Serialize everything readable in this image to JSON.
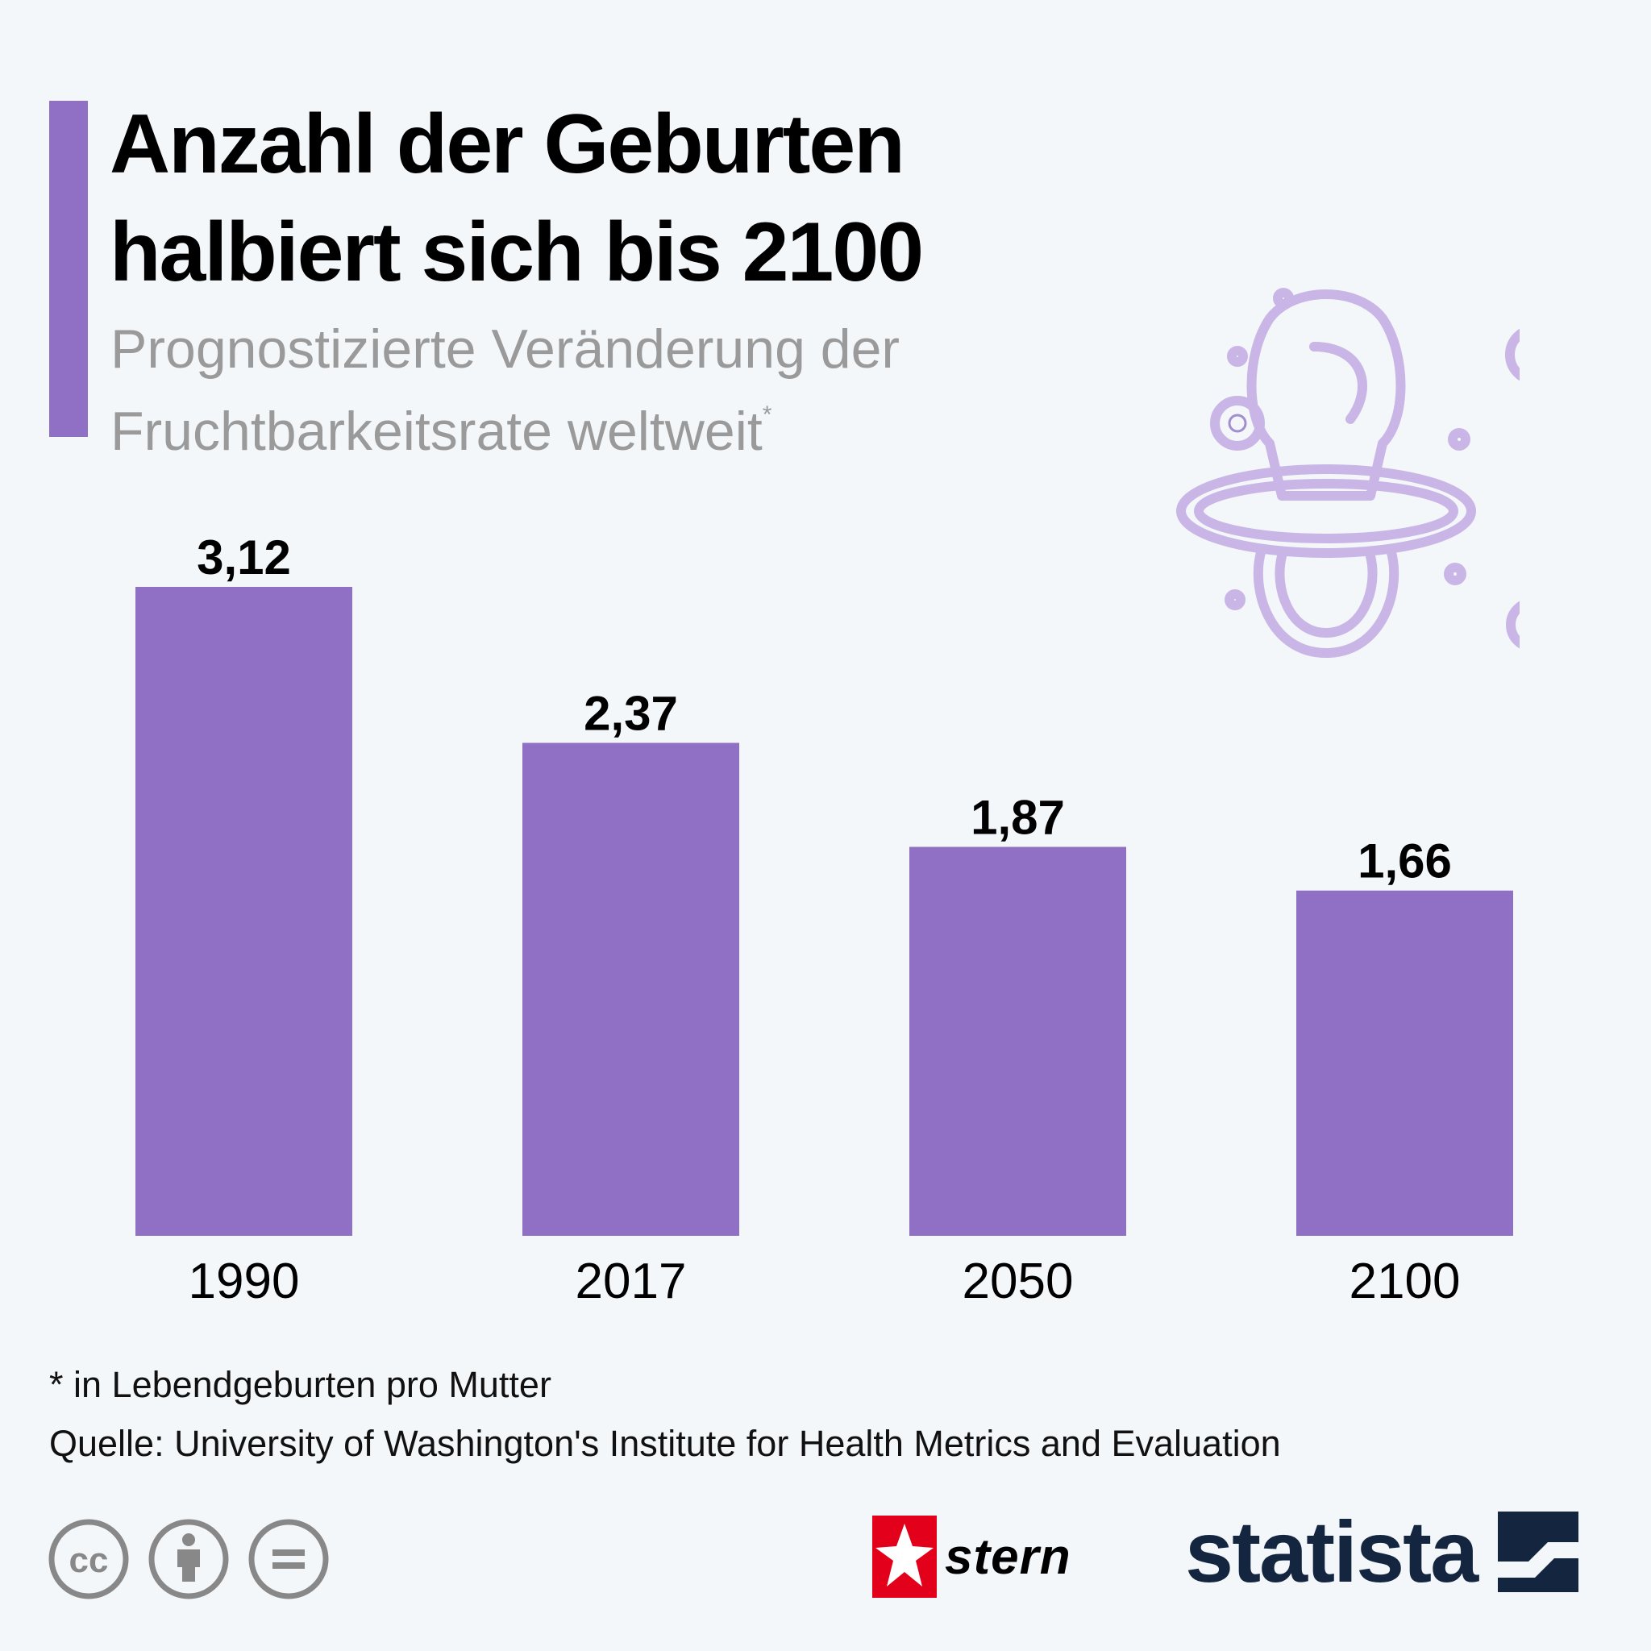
{
  "title_line1": "Anzahl der Geburten",
  "title_line2": "halbiert sich bis 2100",
  "subtitle_line1": "Prognostizierte Veränderung der",
  "subtitle_line2": "Fruchtbarkeitsrate weltweit",
  "subtitle_marker": "*",
  "footnote": "* in Lebendgeburten pro Mutter",
  "source": "Quelle: University of Washington's Institute for Health Metrics and Evaluation",
  "icons": {
    "illustration": "pacifier-icon",
    "license": [
      "cc-icon",
      "by-icon",
      "nd-icon"
    ],
    "stern_brand": "stern-star-icon",
    "statista_brand": "statista-mark-icon"
  },
  "brands": {
    "stern": "stern",
    "statista": "statista"
  },
  "colors": {
    "bar": "#8f70c4",
    "accent": "#8f70c4",
    "illustration": "#c9b6e6",
    "background": "#f4f7fa",
    "stern_red": "#e2001a",
    "statista_navy": "#13253f"
  },
  "chart_data": {
    "type": "bar",
    "categories": [
      "1990",
      "2017",
      "2050",
      "2100"
    ],
    "values": [
      3.12,
      2.37,
      1.87,
      1.66
    ],
    "value_labels": [
      "3,12",
      "2,37",
      "1,87",
      "1,66"
    ],
    "ylim": [
      0,
      3.12
    ],
    "grid": false,
    "legend": "none",
    "xlabel": "",
    "ylabel": ""
  }
}
